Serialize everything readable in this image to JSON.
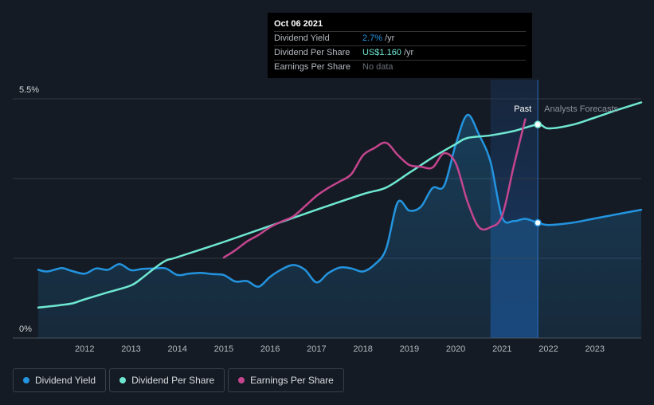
{
  "tooltip": {
    "date": "Oct 06 2021",
    "rows": [
      {
        "label": "Dividend Yield",
        "value": "2.7%",
        "unit": "/yr"
      },
      {
        "label": "Dividend Per Share",
        "value": "US$1.160",
        "unit": "/yr"
      },
      {
        "label": "Earnings Per Share",
        "value": "No data",
        "unit": ""
      }
    ]
  },
  "legend": [
    {
      "label": "Dividend Yield",
      "color": "#2394df"
    },
    {
      "label": "Dividend Per Share",
      "color": "#6fe8d3"
    },
    {
      "label": "Earnings Per Share",
      "color": "#c5458f"
    }
  ],
  "chart_data": {
    "type": "line",
    "x_range": [
      2011.0,
      2024.0
    ],
    "ylim": [
      0,
      5.5
    ],
    "y_tick_labels": [
      "5.5%",
      "0%"
    ],
    "x_tick_labels": [
      "2012",
      "2013",
      "2014",
      "2015",
      "2016",
      "2017",
      "2018",
      "2019",
      "2020",
      "2021",
      "2022",
      "2023"
    ],
    "x_ticks": [
      2012,
      2013,
      2014,
      2015,
      2016,
      2017,
      2018,
      2019,
      2020,
      2021,
      2022,
      2023
    ],
    "past_label": "Past",
    "forecast_label": "Analysts Forecasts",
    "past_band": [
      2020.75,
      2021.77
    ],
    "divider_x": 2021.77,
    "series": [
      {
        "name": "Dividend Yield",
        "color": "#2394df",
        "area": true,
        "x": [
          2011.0,
          2011.2,
          2011.5,
          2011.7,
          2012.0,
          2012.25,
          2012.5,
          2012.75,
          2013.0,
          2013.25,
          2013.5,
          2013.75,
          2014.0,
          2014.25,
          2014.5,
          2014.75,
          2015.0,
          2015.25,
          2015.5,
          2015.75,
          2016.0,
          2016.25,
          2016.5,
          2016.75,
          2017.0,
          2017.25,
          2017.5,
          2017.75,
          2018.0,
          2018.25,
          2018.5,
          2018.75,
          2019.0,
          2019.25,
          2019.5,
          2019.75,
          2020.0,
          2020.25,
          2020.5,
          2020.75,
          2021.0,
          2021.25,
          2021.5,
          2021.77,
          2022.0,
          2022.5,
          2023.0,
          2023.5,
          2024.0
        ],
        "values": [
          1.57,
          1.53,
          1.61,
          1.55,
          1.48,
          1.6,
          1.57,
          1.7,
          1.56,
          1.59,
          1.6,
          1.6,
          1.45,
          1.48,
          1.5,
          1.47,
          1.45,
          1.3,
          1.31,
          1.18,
          1.41,
          1.58,
          1.68,
          1.57,
          1.28,
          1.49,
          1.62,
          1.6,
          1.53,
          1.69,
          2.05,
          3.12,
          2.93,
          3.02,
          3.45,
          3.5,
          4.45,
          5.13,
          4.68,
          4.05,
          2.78,
          2.69,
          2.74,
          2.65,
          2.6,
          2.65,
          2.75,
          2.85,
          2.95
        ]
      },
      {
        "name": "Dividend Per Share",
        "color": "#6fe8d3",
        "area": false,
        "x": [
          2011.0,
          2011.5,
          2011.75,
          2012.0,
          2012.5,
          2013.0,
          2013.25,
          2013.5,
          2013.75,
          2014.0,
          2015.0,
          2016.0,
          2017.0,
          2018.0,
          2018.5,
          2019.0,
          2019.5,
          2020.0,
          2020.25,
          2020.75,
          2021.25,
          2021.77,
          2022.0,
          2022.5,
          2023.0,
          2023.5,
          2024.0
        ],
        "values": [
          0.7,
          0.76,
          0.8,
          0.89,
          1.05,
          1.21,
          1.39,
          1.6,
          1.78,
          1.86,
          2.21,
          2.58,
          2.95,
          3.31,
          3.46,
          3.8,
          4.15,
          4.46,
          4.6,
          4.66,
          4.76,
          4.91,
          4.82,
          4.9,
          5.07,
          5.25,
          5.42
        ]
      },
      {
        "name": "Earnings Per Share",
        "color": "#c5458f",
        "area": false,
        "x": [
          2015.0,
          2015.25,
          2015.5,
          2015.75,
          2016.0,
          2016.25,
          2016.5,
          2016.75,
          2017.0,
          2017.25,
          2017.5,
          2017.75,
          2018.0,
          2018.25,
          2018.5,
          2018.75,
          2019.0,
          2019.25,
          2019.5,
          2019.75,
          2020.0,
          2020.25,
          2020.5,
          2020.75,
          2021.0,
          2021.25,
          2021.5
        ],
        "values": [
          1.85,
          2.02,
          2.22,
          2.37,
          2.55,
          2.68,
          2.8,
          3.03,
          3.27,
          3.45,
          3.6,
          3.77,
          4.2,
          4.37,
          4.49,
          4.21,
          3.98,
          3.94,
          3.92,
          4.25,
          4.02,
          3.15,
          2.55,
          2.55,
          2.81,
          3.95,
          5.03
        ]
      }
    ],
    "highlight": {
      "x": 2021.77,
      "values": {
        "Dividend Yield": 2.65,
        "Dividend Per Share": 4.91
      }
    }
  }
}
